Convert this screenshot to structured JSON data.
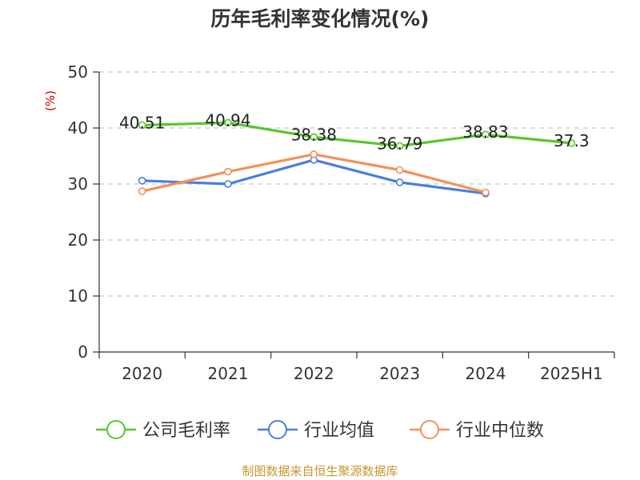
{
  "chart_data": {
    "type": "line",
    "title": "历年毛利率变化情况(%)",
    "ylabel": "(%)",
    "xlabel": "",
    "ylim": [
      0,
      50
    ],
    "yticks": [
      0,
      10,
      20,
      30,
      40,
      50
    ],
    "grid": true,
    "legend_position": "bottom",
    "categories": [
      "2020",
      "2021",
      "2022",
      "2023",
      "2024",
      "2025H1"
    ],
    "series": [
      {
        "name": "公司毛利率",
        "color": "#5ac52c",
        "values": [
          40.51,
          40.94,
          38.38,
          36.79,
          38.83,
          37.3
        ],
        "labels": [
          "40.51",
          "40.94",
          "38.38",
          "36.79",
          "38.83",
          "37.3"
        ]
      },
      {
        "name": "行业均值",
        "color": "#4a7fdb",
        "values": [
          30.6,
          30.0,
          34.3,
          30.3,
          28.3,
          null
        ]
      },
      {
        "name": "行业中位数",
        "color": "#f4905a",
        "values": [
          28.7,
          32.2,
          35.3,
          32.5,
          28.5,
          null
        ]
      }
    ]
  },
  "footer": {
    "source": "制图数据来自恒生聚源数据库"
  }
}
